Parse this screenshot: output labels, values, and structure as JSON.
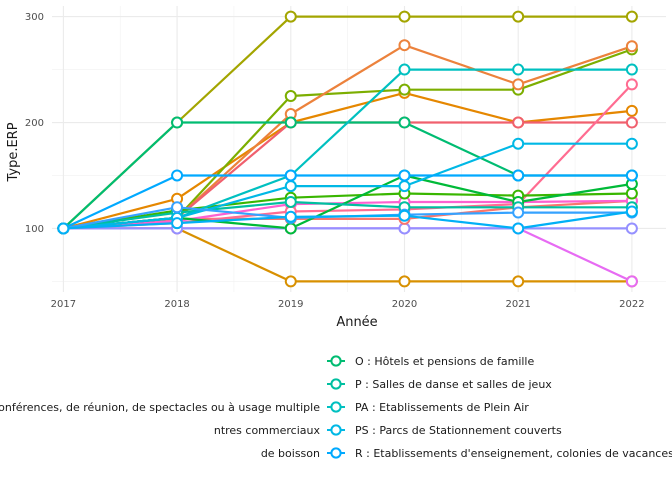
{
  "chart_data": {
    "type": "line",
    "xlabel": "Année",
    "ylabel": "Type.ERP",
    "x": [
      2017,
      2018,
      2019,
      2020,
      2021,
      2022
    ],
    "xlim": [
      2016.9,
      2022.3
    ],
    "ylim": [
      40,
      310
    ],
    "yticks": [
      100,
      200,
      300
    ],
    "grid": true,
    "legend_position": "bottom",
    "series": [
      {
        "name": "",
        "color": "#d89000",
        "values": [
          100,
          100,
          50,
          50,
          50,
          50
        ]
      },
      {
        "name": "",
        "color": "#a3a500",
        "values": [
          100,
          200,
          300,
          300,
          300,
          300
        ]
      },
      {
        "name": "",
        "color": "#e58700",
        "values": [
          100,
          128,
          200,
          228,
          200,
          211
        ]
      },
      {
        "name": "",
        "color": "#7cae00",
        "values": [
          100,
          110,
          225,
          231,
          231,
          269
        ]
      },
      {
        "name": "",
        "color": "#e76bf3",
        "values": [
          100,
          100,
          100,
          100,
          100,
          50
        ]
      },
      {
        "name": "",
        "color": "#9590ff",
        "values": [
          100,
          100,
          100,
          100,
          100,
          100
        ]
      },
      {
        "name": "",
        "color": "#f8766d",
        "values": [
          100,
          109,
          109,
          109,
          120,
          126
        ]
      },
      {
        "name": "",
        "color": "#ec823c",
        "values": [
          100,
          110,
          208,
          273,
          236,
          272
        ]
      },
      {
        "name": "",
        "color": "#f0606e",
        "values": [
          100,
          110,
          200,
          200,
          200,
          200
        ]
      },
      {
        "name": "",
        "color": "#fd61d1",
        "values": [
          100,
          107,
          123,
          125,
          125,
          126
        ]
      },
      {
        "name": "",
        "color": "#ff6c91",
        "values": [
          100,
          105,
          116,
          118,
          123,
          236
        ]
      },
      {
        "name": "",
        "color": "#39b600",
        "values": [
          100,
          117,
          129,
          133,
          131,
          133
        ]
      },
      {
        "name": "",
        "color": "#00ba38",
        "values": [
          100,
          110,
          100,
          150,
          125,
          142
        ]
      },
      {
        "name": "O : Hôtels et pensions de famille",
        "color": "#00bc72",
        "values": [
          100,
          200,
          200,
          200,
          150,
          150
        ]
      },
      {
        "name": "P : Salles de danse et salles de jeux",
        "color": "#00bfa0",
        "values": [
          100,
          115,
          125,
          120,
          120,
          120
        ]
      },
      {
        "name": "PA : Etablissements de Plein Air",
        "color": "#00c0c0",
        "values": [
          100,
          110,
          150,
          250,
          250,
          250
        ]
      },
      {
        "name": "PS : Parcs de Stationnement couverts",
        "color": "#00b8e5",
        "values": [
          100,
          110,
          140,
          140,
          180,
          180
        ]
      },
      {
        "name": "R : Etablissements d'enseignement, colonies de vacances",
        "color": "#00a9ff",
        "values": [
          100,
          150,
          150,
          150,
          150,
          150
        ]
      },
      {
        "name": "",
        "color": "#35a2ff",
        "values": [
          100,
          120,
          110,
          113,
          115,
          115
        ]
      },
      {
        "name": "",
        "color": "#00b0f6",
        "values": [
          100,
          105,
          111,
          112,
          100,
          116
        ]
      }
    ],
    "legend": {
      "right_column": [
        {
          "label": "O : Hôtels et pensions de famille",
          "color": "#00bc72"
        },
        {
          "label": "P : Salles de danse et salles de jeux",
          "color": "#00bfa0"
        },
        {
          "label": "PA : Etablissements de Plein Air",
          "color": "#00c0c0"
        },
        {
          "label": "PS : Parcs de Stationnement couverts",
          "color": "#00b8e5"
        },
        {
          "label": "R : Etablissements d'enseignement, colonies de vacances",
          "color": "#00a9ff"
        }
      ],
      "left_column_partial": [
        {
          "label": "onférences, de réunion, de spectacles ou à usage multiple"
        },
        {
          "label": "ntres commerciaux"
        },
        {
          "label": "de boisson"
        }
      ]
    }
  }
}
